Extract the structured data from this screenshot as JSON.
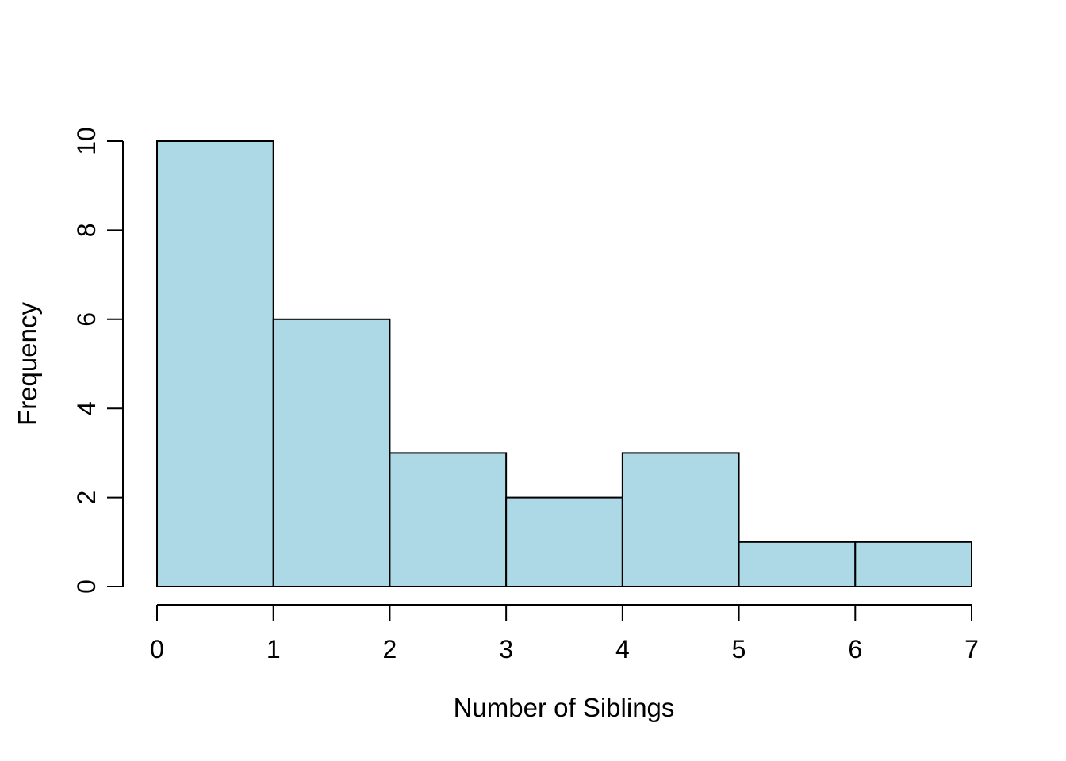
{
  "chart_data": {
    "type": "bar",
    "subtype": "histogram",
    "title": "",
    "xlabel": "Number of Siblings",
    "ylabel": "Frequency",
    "bin_edges": [
      0,
      1,
      2,
      3,
      4,
      5,
      6,
      7
    ],
    "counts": [
      10,
      6,
      3,
      2,
      3,
      1,
      1
    ],
    "x_tick_labels": [
      "0",
      "1",
      "2",
      "3",
      "4",
      "5",
      "6",
      "7"
    ],
    "x_tick_values": [
      0,
      1,
      2,
      3,
      4,
      5,
      6,
      7
    ],
    "y_tick_labels": [
      "0",
      "2",
      "4",
      "6",
      "8",
      "10"
    ],
    "y_tick_values": [
      0,
      2,
      4,
      6,
      8,
      10
    ],
    "xlim": [
      0,
      7
    ],
    "ylim": [
      0,
      10
    ],
    "grid": false,
    "legend": null,
    "colors": {
      "bar_fill": "#ADD8E6",
      "bar_stroke": "#000000",
      "axis": "#000000",
      "text": "#000000",
      "background": "#FFFFFF"
    }
  }
}
